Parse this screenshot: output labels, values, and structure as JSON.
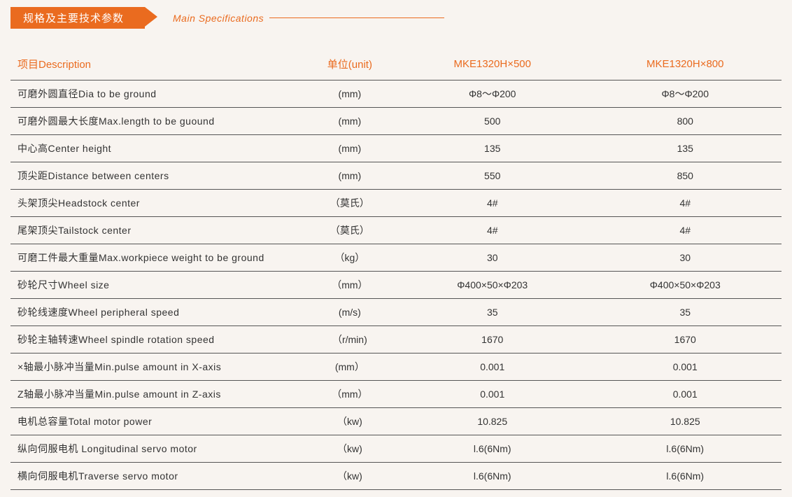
{
  "header": {
    "title_cn": "规格及主要技术参数",
    "title_en": "Main Specifications"
  },
  "table": {
    "columns": {
      "description": "项目Description",
      "unit": "单位(unit)",
      "model1": "MKE1320H×500",
      "model2": "MKE1320H×800"
    },
    "rows": [
      {
        "desc": "可磨外圆直径Dia to be ground",
        "unit": "(mm)",
        "m1": "Φ8～Φ200",
        "m2": "Φ8～Φ200"
      },
      {
        "desc": "可磨外圆最大长度Max.length to be guound",
        "unit": "(mm)",
        "m1": "500",
        "m2": "800"
      },
      {
        "desc": "中心高Center height",
        "unit": "(mm)",
        "m1": "135",
        "m2": "135"
      },
      {
        "desc": "顶尖距Distance between centers",
        "unit": "(mm)",
        "m1": "550",
        "m2": "850"
      },
      {
        "desc": "头架顶尖Headstock center",
        "unit": "（莫氏）",
        "m1": "4#",
        "m2": "4#"
      },
      {
        "desc": "尾架顶尖Tailstock center",
        "unit": "（莫氏）",
        "m1": "4#",
        "m2": "4#"
      },
      {
        "desc": "可磨工件最大重量Max.workpiece weight to be ground",
        "unit": "（kg）",
        "m1": "30",
        "m2": "30"
      },
      {
        "desc": "砂轮尺寸Wheel size",
        "unit": "（mm）",
        "m1": "Φ400×50×Φ203",
        "m2": "Φ400×50×Φ203"
      },
      {
        "desc": "砂轮线速度Wheel peripheral speed",
        "unit": "(m/s)",
        "m1": "35",
        "m2": "35"
      },
      {
        "desc": "砂轮主轴转速Wheel spindle rotation speed",
        "unit": "（r/min)",
        "m1": "1670",
        "m2": "1670"
      },
      {
        "desc": "×轴最小脉冲当量Min.pulse amount in X-axis",
        "unit": "(mm）",
        "m1": "0.001",
        "m2": "0.001"
      },
      {
        "desc": "Z轴最小脉冲当量Min.pulse amount in Z-axis",
        "unit": "（mm）",
        "m1": "0.001",
        "m2": "0.001"
      },
      {
        "desc": "电机总容量Total motor power",
        "unit": "（kw)",
        "m1": "10.825",
        "m2": "10.825"
      },
      {
        "desc": "纵向伺服电机 Longitudinal servo motor",
        "unit": "（kw)",
        "m1": "l.6(6Nm)",
        "m2": "l.6(6Nm)"
      },
      {
        "desc": "横向伺服电机Traverse servo motor",
        "unit": "（kw)",
        "m1": "l.6(6Nm)",
        "m2": "l.6(6Nm)"
      }
    ]
  },
  "styling": {
    "accent_color": "#ea6b1f",
    "background_color": "#f8f4f0",
    "text_color": "#333333",
    "border_color": "#555555",
    "header_font_size": 15,
    "body_font_size": 14
  }
}
